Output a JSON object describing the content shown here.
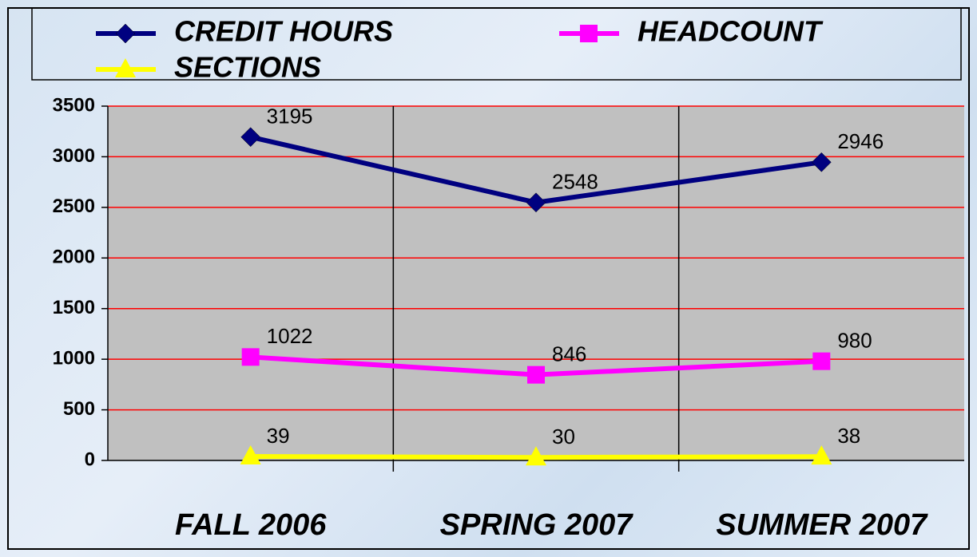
{
  "chart_data": {
    "type": "line",
    "categories": [
      "FALL 2006",
      "SPRING 2007",
      "SUMMER 2007"
    ],
    "series": [
      {
        "name": "CREDIT HOURS",
        "color": "#000080",
        "marker": "diamond",
        "values": [
          3195,
          2548,
          2946
        ]
      },
      {
        "name": "HEADCOUNT",
        "color": "#ff00ff",
        "marker": "square",
        "values": [
          1022,
          846,
          980
        ]
      },
      {
        "name": "SECTIONS",
        "color": "#ffff00",
        "marker": "triangle",
        "values": [
          39,
          30,
          38
        ]
      }
    ],
    "ylim": [
      0,
      3500
    ],
    "yticks": [
      0,
      500,
      1000,
      1500,
      2000,
      2500,
      3000,
      3500
    ],
    "grid": true,
    "grid_color": "#ff0000",
    "plot_background": "#c0c0c0",
    "legend": "top"
  }
}
